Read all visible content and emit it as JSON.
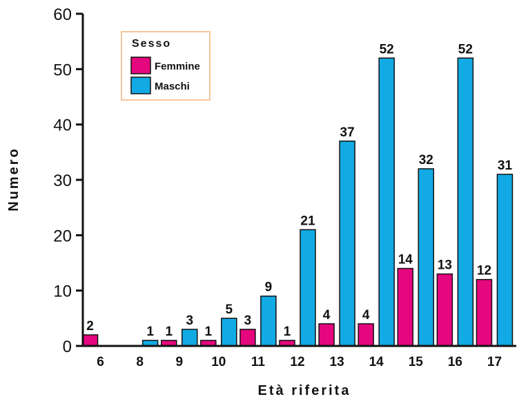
{
  "chart_data": {
    "type": "bar",
    "categories": [
      "6",
      "8",
      "9",
      "10",
      "11",
      "12",
      "13",
      "14",
      "15",
      "16",
      "17"
    ],
    "series": [
      {
        "name": "Femmine",
        "color": "#e5077e",
        "values": [
          2,
          0,
          1,
          1,
          3,
          1,
          4,
          4,
          14,
          13,
          12
        ],
        "labels": [
          "2",
          "",
          "1",
          "1",
          "3",
          "1",
          "4",
          "4",
          "14",
          "13",
          "12"
        ]
      },
      {
        "name": "Maschi",
        "color": "#12aae5",
        "values": [
          0,
          1,
          3,
          5,
          9,
          21,
          37,
          52,
          32,
          52,
          31
        ],
        "labels": [
          "",
          "1",
          "3",
          "5",
          "9",
          "21",
          "37",
          "52",
          "32",
          "52",
          "31"
        ]
      }
    ],
    "title": "",
    "xlabel": "Età riferita",
    "ylabel": "Numero",
    "ylim": [
      0,
      60
    ],
    "yticks": [
      "0",
      "10",
      "20",
      "30",
      "40",
      "50",
      "60"
    ],
    "legend_title": "Sesso",
    "legend_placement": "top-left",
    "grid": false
  }
}
